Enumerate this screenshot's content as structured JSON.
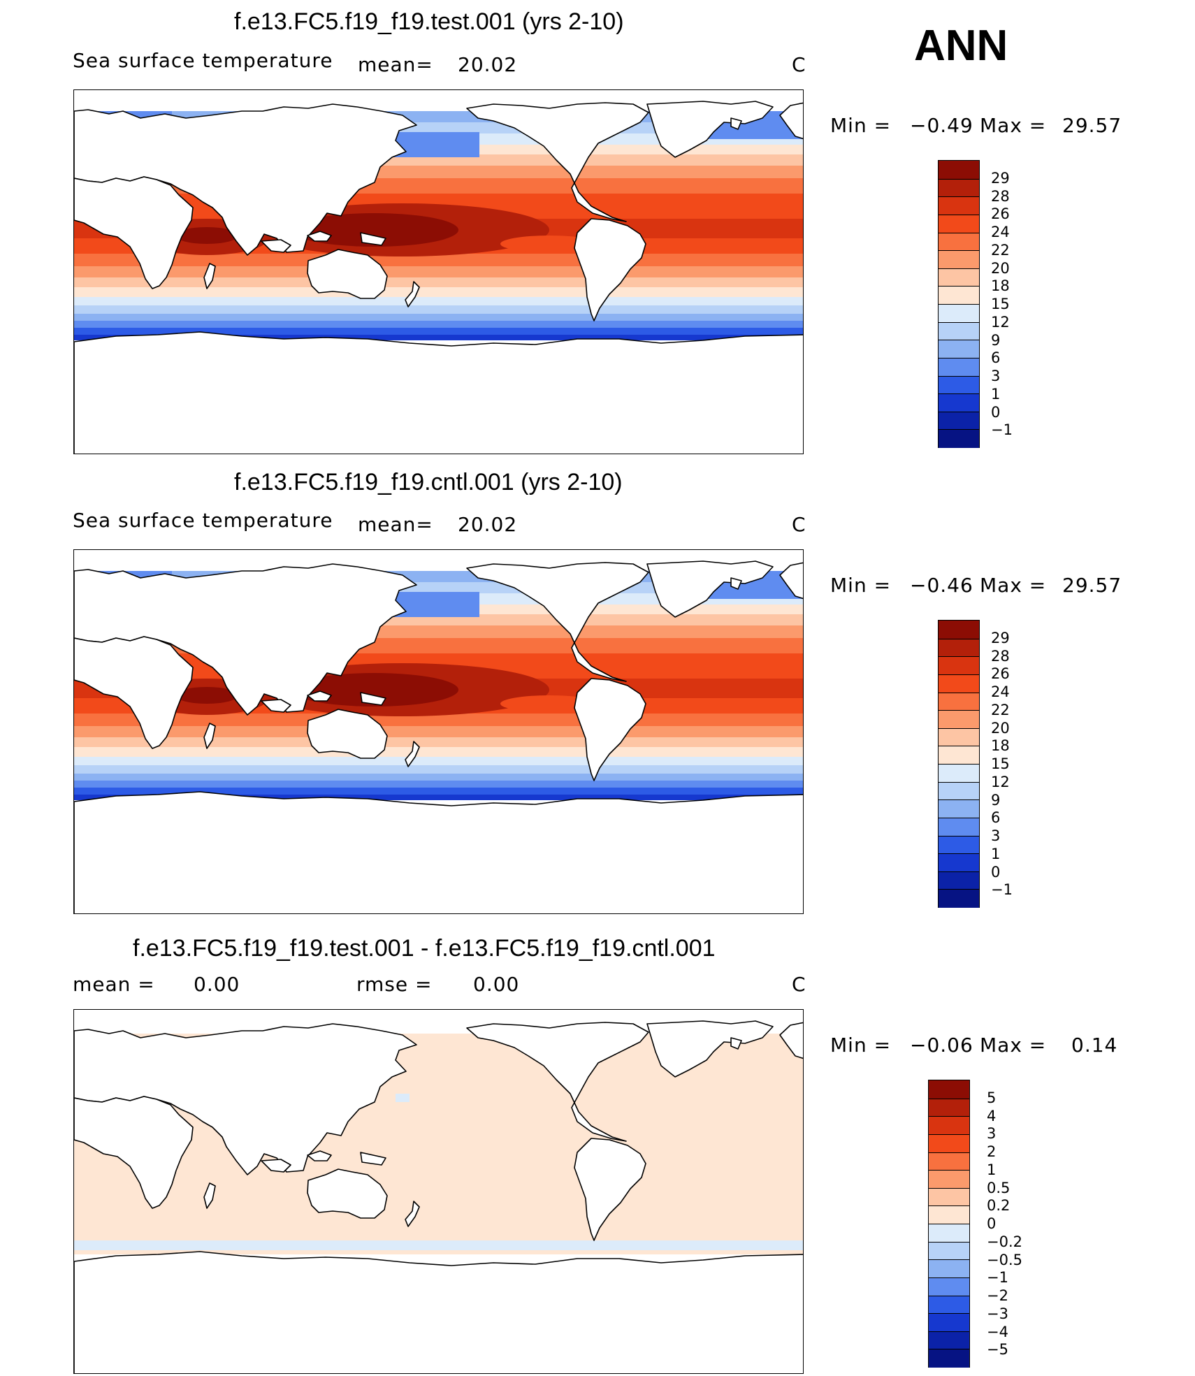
{
  "season_label": "ANN",
  "panels": [
    {
      "id": "test",
      "title": "f.e13.FC5.f19_f19.test.001 (yrs 2-10)",
      "variable": "Sea surface temperature",
      "stat1_label": "mean=",
      "stat1_value": "20.02",
      "stat2_label": "",
      "stat2_value": "",
      "units": "C",
      "min_label": "Min =",
      "min_value": "−0.49",
      "max_label": "Max =",
      "max_value": "29.57",
      "colorbar": {
        "labels": [
          "29",
          "28",
          "26",
          "24",
          "22",
          "20",
          "18",
          "15",
          "12",
          "9",
          "6",
          "3",
          "1",
          "0",
          "−1"
        ],
        "colors": [
          "#8c0d04",
          "#b3200a",
          "#d93410",
          "#f24a1a",
          "#f8713f",
          "#fb9a6c",
          "#fdc5a4",
          "#fee6d3",
          "#dcebfa",
          "#b7d2f7",
          "#8cb2f2",
          "#5f8cf0",
          "#2d5be6",
          "#1638cf",
          "#0b22a8",
          "#061383"
        ]
      }
    },
    {
      "id": "cntl",
      "title": "f.e13.FC5.f19_f19.cntl.001 (yrs 2-10)",
      "variable": "Sea surface temperature",
      "stat1_label": "mean=",
      "stat1_value": "20.02",
      "stat2_label": "",
      "stat2_value": "",
      "units": "C",
      "min_label": "Min =",
      "min_value": "−0.46",
      "max_label": "Max =",
      "max_value": "29.57",
      "colorbar": {
        "labels": [
          "29",
          "28",
          "26",
          "24",
          "22",
          "20",
          "18",
          "15",
          "12",
          "9",
          "6",
          "3",
          "1",
          "0",
          "−1"
        ],
        "colors": [
          "#8c0d04",
          "#b3200a",
          "#d93410",
          "#f24a1a",
          "#f8713f",
          "#fb9a6c",
          "#fdc5a4",
          "#fee6d3",
          "#dcebfa",
          "#b7d2f7",
          "#8cb2f2",
          "#5f8cf0",
          "#2d5be6",
          "#1638cf",
          "#0b22a8",
          "#061383"
        ]
      }
    },
    {
      "id": "diff",
      "title": "f.e13.FC5.f19_f19.test.001 - f.e13.FC5.f19_f19.cntl.001",
      "variable": "",
      "stat1_label": "mean =",
      "stat1_value": "0.00",
      "stat2_label": "rmse =",
      "stat2_value": "0.00",
      "units": "C",
      "min_label": "Min =",
      "min_value": "−0.06",
      "max_label": "Max =",
      "max_value": "0.14",
      "colorbar": {
        "labels": [
          "5",
          "4",
          "3",
          "2",
          "1",
          "0.5",
          "0.2",
          "0",
          "−0.2",
          "−0.5",
          "−1",
          "−2",
          "−3",
          "−4",
          "−5"
        ],
        "colors": [
          "#8c0d04",
          "#b3200a",
          "#d93410",
          "#f24a1a",
          "#f8713f",
          "#fb9a6c",
          "#fdc5a4",
          "#fee6d3",
          "#dcebfa",
          "#b7d2f7",
          "#8cb2f2",
          "#5f8cf0",
          "#2d5be6",
          "#1638cf",
          "#0b22a8",
          "#061383"
        ]
      }
    }
  ]
}
